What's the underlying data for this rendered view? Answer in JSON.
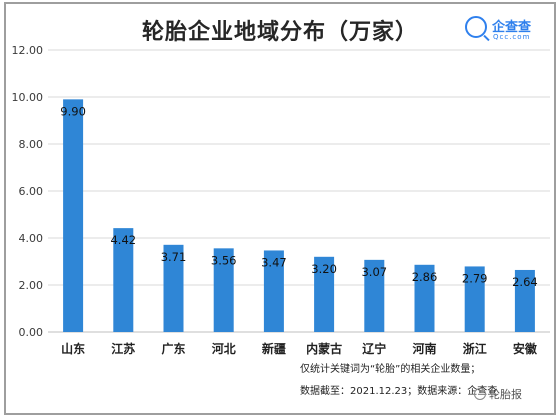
{
  "title": "轮胎企业地域分布（万家）",
  "logo": {
    "name": "企查查",
    "domain": "Qcc.com"
  },
  "notes": [
    "仅统计关键词为“轮胎”的相关企业数量；",
    "数据截至：2021.12.23；数据来源：企查查"
  ],
  "watermark": "轮胎报",
  "colors": {
    "bar": "#2f86d6",
    "grid": "#d9d9d9",
    "axis": "#bfbfbf"
  },
  "chart_data": {
    "type": "bar",
    "title": "轮胎企业地域分布（万家）",
    "categories": [
      "山东",
      "江苏",
      "广东",
      "河北",
      "新疆",
      "内蒙古",
      "辽宁",
      "河南",
      "浙江",
      "安徽"
    ],
    "values": [
      9.9,
      4.42,
      3.71,
      3.56,
      3.47,
      3.2,
      3.07,
      2.86,
      2.79,
      2.64
    ],
    "value_labels": [
      "9.90",
      "4.42",
      "3.71",
      "3.56",
      "3.47",
      "3.20",
      "3.07",
      "2.86",
      "2.79",
      "2.64"
    ],
    "ylim": [
      0,
      12
    ],
    "yticks": [
      "0.00",
      "2.00",
      "4.00",
      "6.00",
      "8.00",
      "10.00",
      "12.00"
    ],
    "grid": true,
    "legend": "none"
  }
}
